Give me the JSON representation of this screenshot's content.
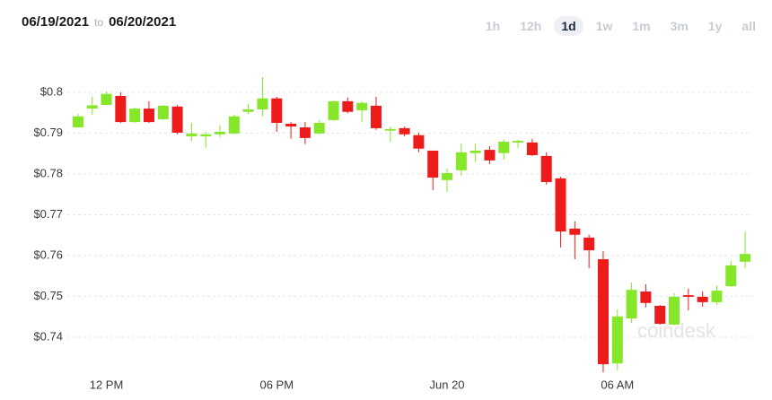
{
  "date_range": {
    "from": "06/19/2021",
    "separator": "to",
    "to": "06/20/2021"
  },
  "range_buttons": {
    "labels": [
      "1h",
      "12h",
      "1d",
      "1w",
      "1m",
      "3m",
      "1y",
      "all"
    ],
    "active": 2
  },
  "chart_data": {
    "type": "candlestick",
    "watermark": "coindesk",
    "up_color": "#86e62a",
    "down_color": "#ee1b1b",
    "grid": true,
    "categories": [
      null,
      null,
      "12 PM",
      null,
      null,
      null,
      null,
      null,
      null,
      null,
      null,
      null,
      null,
      null,
      "06 PM",
      null,
      null,
      null,
      null,
      null,
      null,
      null,
      null,
      null,
      null,
      null,
      "Jun 20",
      null,
      null,
      null,
      null,
      null,
      null,
      null,
      null,
      null,
      null,
      null,
      "06 AM",
      null,
      null,
      null,
      null,
      null,
      null,
      null,
      null,
      null
    ],
    "open": [
      0.7914,
      0.796,
      0.7969,
      0.7991,
      0.7927,
      0.796,
      0.7934,
      0.7965,
      0.7892,
      0.7892,
      0.7897,
      0.7899,
      0.7952,
      0.7958,
      0.7985,
      0.7923,
      0.7914,
      0.7899,
      0.7932,
      0.7978,
      0.7956,
      0.7967,
      0.7906,
      0.7912,
      0.7895,
      0.7857,
      0.7785,
      0.7809,
      0.7851,
      0.7859,
      0.7851,
      0.7877,
      0.7877,
      0.7844,
      0.7789,
      0.7666,
      0.7644,
      0.7591,
      0.7336,
      0.7446,
      0.7512,
      0.7477,
      0.7431,
      0.7503,
      0.7499,
      0.7486,
      0.7525,
      0.7585
    ],
    "high": [
      0.7947,
      0.7989,
      0.8002,
      0.8,
      0.7963,
      0.7978,
      0.7969,
      0.7969,
      0.7925,
      0.7903,
      0.7919,
      0.7945,
      0.7971,
      0.8037,
      0.7989,
      0.7927,
      0.7927,
      0.7932,
      0.798,
      0.7987,
      0.7978,
      0.7989,
      0.7916,
      0.7916,
      0.7901,
      0.7857,
      0.7813,
      0.7875,
      0.7875,
      0.7868,
      0.7884,
      0.7884,
      0.7886,
      0.7853,
      0.7793,
      0.7684,
      0.7651,
      0.7611,
      0.7468,
      0.7534,
      0.753,
      0.7479,
      0.7508,
      0.7519,
      0.7512,
      0.7527,
      0.7587,
      0.7659
    ],
    "low": [
      0.7914,
      0.7945,
      0.7969,
      0.7925,
      0.7925,
      0.7925,
      0.7932,
      0.7897,
      0.7881,
      0.7864,
      0.789,
      0.7897,
      0.7947,
      0.7941,
      0.7903,
      0.7886,
      0.7873,
      0.7897,
      0.793,
      0.7949,
      0.7927,
      0.7908,
      0.7879,
      0.7892,
      0.7853,
      0.776,
      0.7756,
      0.7796,
      0.7829,
      0.7824,
      0.7835,
      0.7864,
      0.7844,
      0.7774,
      0.762,
      0.7591,
      0.7569,
      0.7314,
      0.7319,
      0.7435,
      0.7473,
      0.7431,
      0.7429,
      0.7466,
      0.7475,
      0.7479,
      0.7523,
      0.7569
    ],
    "close": [
      0.7941,
      0.7968,
      0.7996,
      0.7927,
      0.796,
      0.7927,
      0.7967,
      0.7901,
      0.7899,
      0.7897,
      0.7903,
      0.7941,
      0.7958,
      0.7985,
      0.7925,
      0.7916,
      0.7888,
      0.7925,
      0.7978,
      0.7952,
      0.7974,
      0.7912,
      0.791,
      0.7897,
      0.7862,
      0.7791,
      0.7802,
      0.7853,
      0.7857,
      0.7833,
      0.7879,
      0.7881,
      0.7846,
      0.778,
      0.7659,
      0.7651,
      0.7613,
      0.7334,
      0.7451,
      0.7516,
      0.7484,
      0.7433,
      0.7499,
      0.7499,
      0.7486,
      0.7514,
      0.7576,
      0.7604
    ],
    "ylim": [
      0.731,
      0.807
    ],
    "yticks": [
      {
        "value": 0.8,
        "label": "$0.8"
      },
      {
        "value": 0.79,
        "label": "$0.79"
      },
      {
        "value": 0.78,
        "label": "$0.78"
      },
      {
        "value": 0.77,
        "label": "$0.77"
      },
      {
        "value": 0.76,
        "label": "$0.76"
      },
      {
        "value": 0.75,
        "label": "$0.75"
      },
      {
        "value": 0.74,
        "label": "$0.74"
      }
    ]
  }
}
